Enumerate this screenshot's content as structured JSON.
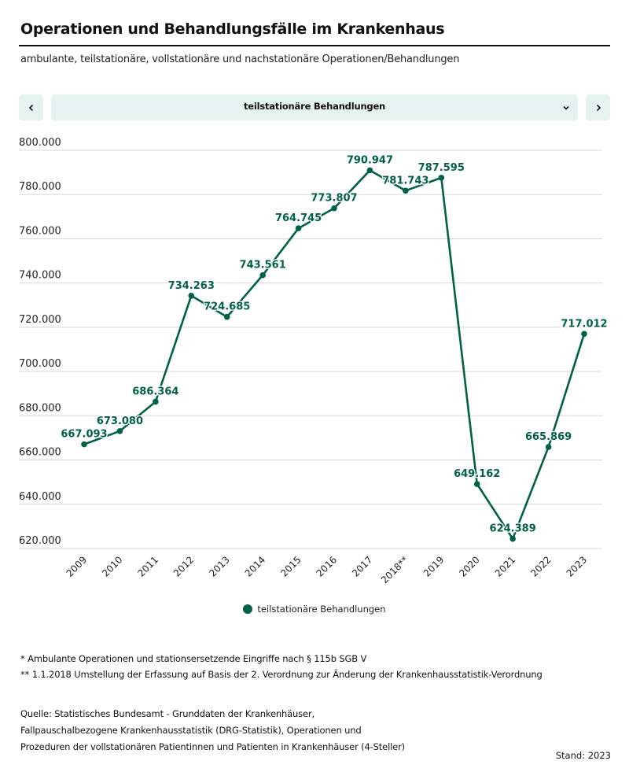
{
  "header": {
    "title": "Operationen und Behandlungsfälle im Krankenhaus",
    "subtitle": "ambulante, teilstationäre, vollstationäre und nachstationäre Operationen/Behandlungen"
  },
  "selector": {
    "prev_icon": "chevron-left-icon",
    "next_icon": "chevron-right-icon",
    "dropdown_icon": "chevron-down-icon",
    "selected": "teilstationäre Behandlungen"
  },
  "colors": {
    "series": "#006048",
    "grid": "#d9d9d9",
    "button_bg": "#e6f2ef"
  },
  "chart_data": {
    "type": "line",
    "title": "",
    "xlabel": "",
    "ylabel": "",
    "ylim": [
      620000,
      800000
    ],
    "grid": true,
    "legend_position": "bottom-center",
    "yticks": [
      620000,
      640000,
      660000,
      680000,
      700000,
      720000,
      740000,
      760000,
      780000,
      800000
    ],
    "ytick_labels": [
      "620.000",
      "640.000",
      "660.000",
      "680.000",
      "700.000",
      "720.000",
      "740.000",
      "760.000",
      "780.000",
      "800.000"
    ],
    "categories": [
      "2009",
      "2010",
      "2011",
      "2012",
      "2013",
      "2014",
      "2015",
      "2016",
      "2017",
      "2018**",
      "2019",
      "2020",
      "2021",
      "2022",
      "2023"
    ],
    "series": [
      {
        "name": "teilstationäre Behandlungen",
        "values": [
          667093,
          673080,
          686364,
          734263,
          724685,
          743561,
          764745,
          773807,
          790947,
          781743,
          787595,
          649162,
          624389,
          665869,
          717012
        ],
        "labels": [
          "667.093",
          "673.080",
          "686.364",
          "734.263",
          "724.685",
          "743.561",
          "764.745",
          "773.807",
          "790.947",
          "781.743",
          "787.595",
          "649.162",
          "624.389",
          "665.869",
          "717.012"
        ]
      }
    ]
  },
  "footnotes": [
    "* Ambulante Operationen und stationsersetzende Eingriffe nach § 115b SGB V",
    "** 1.1.2018 Umstellung der Erfassung auf Basis der 2. Verordnung zur Änderung der Krankenhausstatistik-Verordnung"
  ],
  "source": "Quelle: Statistisches Bundesamt - Grunddaten der Krankenhäuser, Fallpauschalbezogene Krankenhausstatistik (DRG-Statistik), Operationen und Prozeduren der vollstationären Patientinnen und Patienten in Krankenhäuser (4-Steller)",
  "stand": "Stand: 2023"
}
